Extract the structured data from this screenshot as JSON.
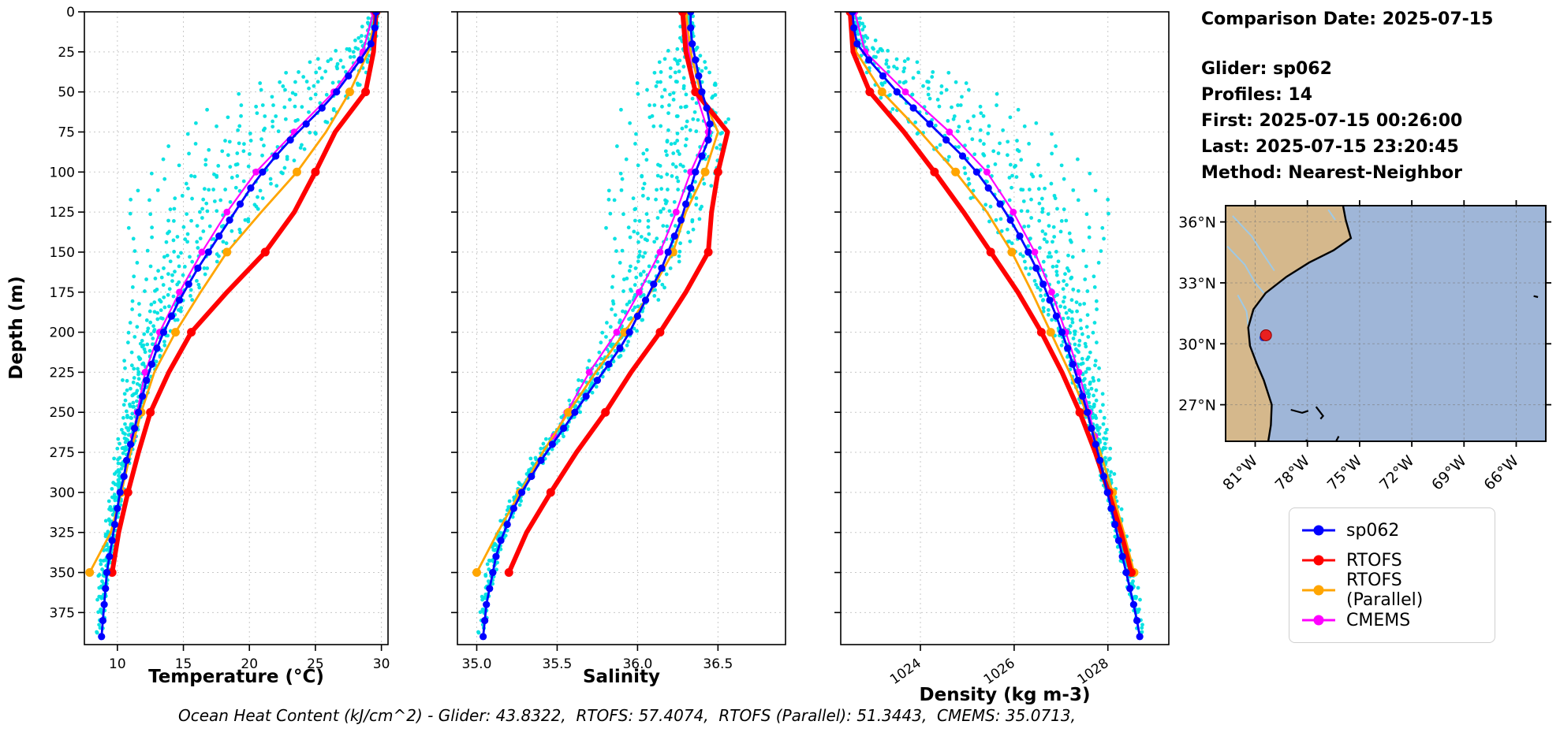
{
  "info": {
    "comparison_date": "Comparison Date: 2025-07-15",
    "glider": "Glider: sp062",
    "profiles": "Profiles: 14",
    "first": "First: 2025-07-15 00:26:00",
    "last": "Last: 2025-07-15 23:20:45",
    "method": "Method: Nearest-Neighbor"
  },
  "footer": {
    "text": "Ocean Heat Content (kJ/cm^2) - Glider: 43.8322,  RTOFS: 57.4074,  RTOFS (Parallel): 51.3443,  CMEMS: 35.0713,"
  },
  "legend": {
    "items": [
      {
        "label": "sp062",
        "color": "#0000ff"
      },
      {
        "label": "RTOFS",
        "color": "#ff0000"
      },
      {
        "label": "RTOFS (Parallel)",
        "color": "#ffa500"
      },
      {
        "label": "CMEMS",
        "color": "#ff00ff"
      }
    ]
  },
  "y_axis": {
    "label": "Depth (m)",
    "ticks": [
      0,
      25,
      50,
      75,
      100,
      125,
      150,
      175,
      200,
      225,
      250,
      275,
      300,
      325,
      350,
      375
    ],
    "lim": [
      0,
      395
    ]
  },
  "scatter": {
    "name": "glider-profiles-scatter",
    "color": "#00e0e0",
    "n_profiles": 14,
    "seed": 20250715,
    "radius": 2.4,
    "envelope_depths": [
      0,
      20,
      40,
      60,
      120,
      160,
      200,
      250,
      300,
      390
    ],
    "envelope_values": [
      0.05,
      0.18,
      0.7,
      1,
      1,
      0.55,
      0.3,
      0.14,
      0.08,
      0.06
    ]
  },
  "chart_data": [
    {
      "name": "temperature",
      "type": "line",
      "xlabel": "Temperature (°C)",
      "xlim": [
        7.5,
        30.5
      ],
      "xticks": [
        10,
        15,
        20,
        25,
        30
      ],
      "xtick_labels": [
        "10",
        "15",
        "20",
        "25",
        "30"
      ],
      "xtick_rotation": 0,
      "scatter_coef": 8.5,
      "scatter_noise": 0.5,
      "series": [
        {
          "name": "sp062",
          "color": "#0000ff",
          "width": 2.8,
          "marker": 4.6,
          "marker_every": 1,
          "depths": [
            0,
            10,
            20,
            30,
            40,
            50,
            60,
            70,
            80,
            90,
            100,
            110,
            120,
            130,
            140,
            150,
            160,
            170,
            180,
            190,
            200,
            210,
            220,
            230,
            240,
            250,
            260,
            270,
            280,
            290,
            300,
            310,
            320,
            330,
            340,
            350,
            360,
            370,
            380,
            390
          ],
          "values": [
            29.6,
            29.5,
            29.2,
            28.4,
            27.5,
            26.6,
            25.5,
            24.3,
            23.1,
            22.0,
            21.0,
            20.1,
            19.3,
            18.5,
            17.7,
            16.9,
            16.1,
            15.4,
            14.7,
            14.1,
            13.5,
            13.0,
            12.6,
            12.2,
            11.9,
            11.6,
            11.3,
            11.0,
            10.7,
            10.5,
            10.2,
            10.0,
            9.8,
            9.6,
            9.4,
            9.2,
            9.1,
            9.0,
            8.9,
            8.8
          ]
        },
        {
          "name": "RTOFS",
          "color": "#ff0000",
          "width": 6,
          "marker": 5.5,
          "marker_every": 2,
          "depths": [
            0,
            25,
            50,
            75,
            100,
            125,
            150,
            175,
            200,
            225,
            250,
            275,
            300,
            325,
            350
          ],
          "values": [
            29.6,
            29.4,
            28.8,
            26.5,
            25.0,
            23.4,
            21.2,
            18.3,
            15.6,
            13.9,
            12.5,
            11.6,
            10.8,
            10.1,
            9.6
          ]
        },
        {
          "name": "RTOFS (Parallel)",
          "color": "#ffa500",
          "width": 2.8,
          "marker": 5.5,
          "marker_every": 2,
          "depths": [
            0,
            25,
            50,
            75,
            100,
            125,
            150,
            175,
            200,
            225,
            250,
            275,
            300,
            325,
            350
          ],
          "values": [
            29.6,
            29.0,
            27.6,
            25.8,
            23.6,
            20.9,
            18.3,
            16.3,
            14.4,
            12.8,
            11.8,
            11.0,
            10.3,
            9.5,
            7.9
          ]
        },
        {
          "name": "CMEMS",
          "color": "#ff00ff",
          "width": 2.2,
          "marker": 4.4,
          "marker_every": 1,
          "depths": [
            0,
            25,
            50,
            75,
            100,
            125,
            150,
            175,
            200,
            225,
            250,
            265
          ],
          "values": [
            29.4,
            28.6,
            26.4,
            23.4,
            20.5,
            18.3,
            16.4,
            14.7,
            13.2,
            12.1,
            11.5,
            11.2
          ]
        }
      ]
    },
    {
      "name": "salinity",
      "type": "line",
      "xlabel": "Salinity",
      "xlim": [
        34.88,
        36.92
      ],
      "xticks": [
        35.0,
        35.5,
        36.0,
        36.5
      ],
      "xtick_labels": [
        "35.0",
        "35.5",
        "36.0",
        "36.5"
      ],
      "xtick_rotation": 0,
      "scatter_coef": 0.5,
      "scatter_noise": 0.09,
      "series": [
        {
          "name": "sp062",
          "color": "#0000ff",
          "width": 2.8,
          "marker": 4.6,
          "marker_every": 1,
          "depths": [
            0,
            10,
            20,
            30,
            40,
            50,
            60,
            70,
            80,
            90,
            100,
            110,
            120,
            130,
            140,
            150,
            160,
            170,
            180,
            190,
            200,
            210,
            220,
            230,
            240,
            250,
            260,
            270,
            280,
            290,
            300,
            310,
            320,
            330,
            340,
            350,
            360,
            370,
            380,
            390
          ],
          "values": [
            36.33,
            36.33,
            36.34,
            36.36,
            36.38,
            36.4,
            36.43,
            36.45,
            36.44,
            36.4,
            36.36,
            36.33,
            36.3,
            36.27,
            36.23,
            36.19,
            36.15,
            36.1,
            36.05,
            36.0,
            35.95,
            35.89,
            35.82,
            35.75,
            35.68,
            35.61,
            35.54,
            35.47,
            35.4,
            35.34,
            35.28,
            35.23,
            35.19,
            35.15,
            35.12,
            35.1,
            35.08,
            35.06,
            35.05,
            35.04
          ]
        },
        {
          "name": "RTOFS",
          "color": "#ff0000",
          "width": 6,
          "marker": 5.5,
          "marker_every": 2,
          "depths": [
            0,
            25,
            50,
            75,
            100,
            125,
            150,
            175,
            200,
            225,
            250,
            275,
            300,
            325,
            350
          ],
          "values": [
            36.28,
            36.3,
            36.36,
            36.56,
            36.5,
            36.46,
            36.44,
            36.3,
            36.14,
            35.96,
            35.8,
            35.62,
            35.46,
            35.31,
            35.2
          ]
        },
        {
          "name": "RTOFS (Parallel)",
          "color": "#ffa500",
          "width": 2.8,
          "marker": 5.5,
          "marker_every": 2,
          "depths": [
            0,
            25,
            50,
            75,
            100,
            125,
            150,
            175,
            200,
            225,
            250,
            275,
            300,
            325,
            350
          ],
          "values": [
            36.3,
            36.33,
            36.39,
            36.5,
            36.42,
            36.3,
            36.22,
            36.08,
            35.92,
            35.74,
            35.57,
            35.41,
            35.27,
            35.13,
            35.0
          ]
        },
        {
          "name": "CMEMS",
          "color": "#ff00ff",
          "width": 2.2,
          "marker": 4.4,
          "marker_every": 1,
          "depths": [
            0,
            25,
            50,
            75,
            100,
            125,
            150,
            175,
            200,
            225,
            250,
            265
          ],
          "values": [
            36.3,
            36.32,
            36.36,
            36.44,
            36.33,
            36.24,
            36.14,
            36.01,
            35.87,
            35.7,
            35.56,
            35.48
          ]
        }
      ]
    },
    {
      "name": "density",
      "type": "line",
      "xlabel": "Density (kg m-3)",
      "xlim": [
        1022.3,
        1029.3
      ],
      "xticks": [
        1024,
        1026,
        1028
      ],
      "xtick_labels": [
        "1024",
        "1026",
        "1028"
      ],
      "xtick_rotation": -35,
      "scatter_coef": -2.3,
      "scatter_noise": 0.18,
      "series": [
        {
          "name": "sp062",
          "color": "#0000ff",
          "width": 2.8,
          "marker": 4.6,
          "marker_every": 1,
          "depths": [
            0,
            10,
            20,
            30,
            40,
            50,
            60,
            70,
            80,
            90,
            100,
            110,
            120,
            130,
            140,
            150,
            160,
            170,
            180,
            190,
            200,
            210,
            220,
            230,
            240,
            250,
            260,
            270,
            280,
            290,
            300,
            310,
            320,
            330,
            340,
            350,
            360,
            370,
            380,
            390
          ],
          "values": [
            1022.55,
            1022.58,
            1022.65,
            1022.9,
            1023.2,
            1023.5,
            1023.85,
            1024.2,
            1024.55,
            1024.9,
            1025.2,
            1025.45,
            1025.7,
            1025.92,
            1026.12,
            1026.3,
            1026.47,
            1026.62,
            1026.76,
            1026.9,
            1027.02,
            1027.14,
            1027.25,
            1027.36,
            1027.46,
            1027.56,
            1027.65,
            1027.74,
            1027.83,
            1027.91,
            1027.99,
            1028.07,
            1028.15,
            1028.23,
            1028.31,
            1028.39,
            1028.47,
            1028.55,
            1028.62,
            1028.68
          ]
        },
        {
          "name": "RTOFS",
          "color": "#ff0000",
          "width": 6,
          "marker": 5.5,
          "marker_every": 2,
          "depths": [
            0,
            25,
            50,
            75,
            100,
            125,
            150,
            175,
            200,
            225,
            250,
            275,
            300,
            325,
            350
          ],
          "values": [
            1022.5,
            1022.56,
            1022.92,
            1023.65,
            1024.3,
            1024.92,
            1025.5,
            1026.08,
            1026.58,
            1027.02,
            1027.4,
            1027.73,
            1028.02,
            1028.28,
            1028.5
          ]
        },
        {
          "name": "RTOFS (Parallel)",
          "color": "#ffa500",
          "width": 2.8,
          "marker": 5.5,
          "marker_every": 2,
          "depths": [
            0,
            25,
            50,
            75,
            100,
            125,
            150,
            175,
            200,
            225,
            250,
            275,
            300,
            325,
            350
          ],
          "values": [
            1022.52,
            1022.63,
            1023.18,
            1024.0,
            1024.75,
            1025.42,
            1025.95,
            1026.38,
            1026.78,
            1027.18,
            1027.54,
            1027.84,
            1028.1,
            1028.34,
            1028.56
          ]
        },
        {
          "name": "CMEMS",
          "color": "#ff00ff",
          "width": 2.2,
          "marker": 4.4,
          "marker_every": 1,
          "depths": [
            0,
            25,
            50,
            75,
            100,
            125,
            150,
            175,
            200,
            225,
            250,
            265
          ],
          "values": [
            1022.6,
            1022.82,
            1023.68,
            1024.62,
            1025.42,
            1025.98,
            1026.44,
            1026.8,
            1027.1,
            1027.38,
            1027.6,
            1027.72
          ]
        }
      ]
    }
  ],
  "map": {
    "extent": {
      "lon_min": 64.3,
      "lon_max": 82.7,
      "lat_min": 25.2,
      "lat_max": 36.8
    },
    "lat_ticks": [
      {
        "lat": 36,
        "label": "36°N"
      },
      {
        "lat": 33,
        "label": "33°N"
      },
      {
        "lat": 30,
        "label": "30°N"
      },
      {
        "lat": 27,
        "label": "27°N"
      }
    ],
    "lon_ticks": [
      {
        "lon": 81,
        "label": "81°W"
      },
      {
        "lon": 78,
        "label": "78°W"
      },
      {
        "lon": 75,
        "label": "75°W"
      },
      {
        "lon": 72,
        "label": "72°W"
      },
      {
        "lon": 69,
        "label": "69°W"
      },
      {
        "lon": 66,
        "label": "66°W"
      }
    ],
    "colors": {
      "land": "#d5b88c",
      "ocean": "#9fb6d8",
      "coast": "#000000",
      "river": "#9ec9e6",
      "grid": "#777777"
    },
    "coast": [
      [
        75.95,
        36.8
      ],
      [
        75.8,
        36.1
      ],
      [
        75.5,
        35.2
      ],
      [
        76.5,
        34.6
      ],
      [
        77.9,
        34.0
      ],
      [
        79.2,
        33.3
      ],
      [
        80.4,
        32.5
      ],
      [
        81.1,
        31.7
      ],
      [
        81.4,
        30.8
      ],
      [
        81.3,
        29.9
      ],
      [
        80.9,
        29.0
      ],
      [
        80.5,
        28.2
      ],
      [
        80.05,
        27.0
      ],
      [
        80.1,
        26.0
      ],
      [
        80.25,
        25.2
      ]
    ],
    "rivers": [
      [
        [
          82.3,
          36.3
        ],
        [
          81.2,
          35.3
        ],
        [
          80.6,
          34.5
        ],
        [
          79.9,
          33.6
        ]
      ],
      [
        [
          82.6,
          34.8
        ],
        [
          81.6,
          33.9
        ],
        [
          81.0,
          33.0
        ],
        [
          80.5,
          32.5
        ]
      ],
      [
        [
          82.0,
          32.4
        ],
        [
          81.5,
          31.6
        ],
        [
          81.4,
          30.9
        ]
      ],
      [
        [
          76.8,
          36.6
        ],
        [
          76.4,
          36.1
        ]
      ]
    ],
    "islands": [
      [
        [
          78.95,
          26.75
        ],
        [
          78.3,
          26.6
        ],
        [
          77.95,
          26.7
        ]
      ],
      [
        [
          77.5,
          26.9
        ],
        [
          77.1,
          26.45
        ],
        [
          77.25,
          26.3
        ]
      ],
      [
        [
          76.2,
          25.45
        ],
        [
          76.35,
          25.2
        ]
      ],
      [
        [
          78.1,
          25.25
        ],
        [
          77.95,
          25.2
        ]
      ],
      [
        [
          65.0,
          32.35
        ],
        [
          64.75,
          32.3
        ]
      ]
    ],
    "glider_marker": {
      "lon": 80.38,
      "lat": 30.42,
      "color": "#e82020"
    },
    "model_marker": {
      "lon": 80.55,
      "lat": 30.3,
      "color": "#2238c8"
    }
  }
}
